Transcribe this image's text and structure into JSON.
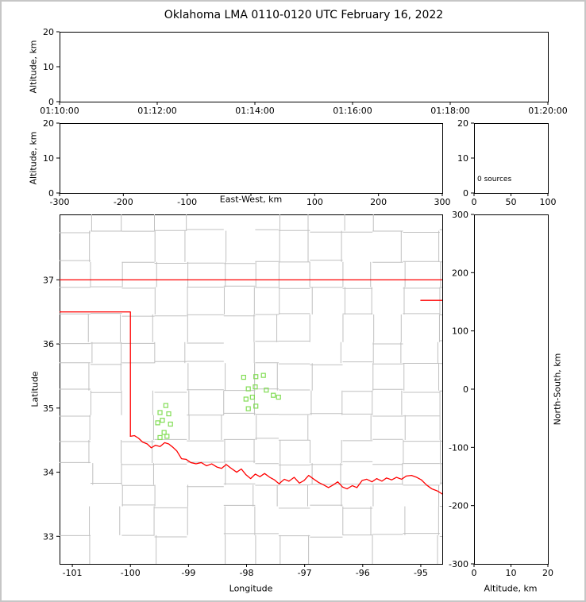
{
  "figure": {
    "title": "Oklahoma LMA 0110-0120 UTC February 16, 2022"
  },
  "colors": {
    "background": "#ffffff",
    "outer_frame": "#c6c6c6",
    "axis": "#000000",
    "county_lines": "#c0c0c0",
    "state_border": "#ff0000",
    "source_marker": "#82dd55"
  },
  "chart_data": [
    {
      "id": "altitude-vs-time",
      "type": "scatter",
      "xlabel": "",
      "ylabel": "Altitude, km",
      "xlim": [
        "01:10:00",
        "01:20:00"
      ],
      "xticks": [
        "01:10:00",
        "01:12:00",
        "01:14:00",
        "01:16:00",
        "01:18:00",
        "01:20:00"
      ],
      "ylim": [
        0,
        20
      ],
      "yticks": [
        0,
        10,
        20
      ],
      "points": []
    },
    {
      "id": "altitude-vs-east-west",
      "type": "scatter",
      "xlabel": "East-West, km",
      "ylabel": "Altitude, km",
      "xlim": [
        -300,
        300
      ],
      "xticks": [
        -300,
        -200,
        -100,
        0,
        100,
        200,
        300
      ],
      "xtick_labels": [
        "-300",
        "-200",
        "-100",
        "",
        "100",
        "200",
        "300"
      ],
      "ylim": [
        0,
        20
      ],
      "yticks": [
        0,
        10,
        20
      ],
      "points": []
    },
    {
      "id": "source-count-histogram",
      "type": "scatter",
      "xlabel": "",
      "ylabel": "",
      "xlim": [
        0,
        100
      ],
      "xticks": [
        0,
        50,
        100
      ],
      "ylim": [
        0,
        20
      ],
      "yticks": [
        0,
        10,
        20
      ],
      "annotation": "0 sources",
      "points": []
    },
    {
      "id": "plan-view-map",
      "type": "scatter",
      "xlabel": "Longitude",
      "ylabel": "Latitude",
      "xlim": [
        -101.22,
        -94.63
      ],
      "xticks": [
        -101,
        -100,
        -99,
        -98,
        -97,
        -96,
        -95
      ],
      "ylim": [
        32.57,
        38.02
      ],
      "yticks": [
        33,
        34,
        35,
        36,
        37
      ],
      "state_borders": [
        [
          [
            -101.22,
            37.0
          ],
          [
            -94.63,
            37.0
          ]
        ],
        [
          [
            -101.22,
            36.5
          ],
          [
            -100.0,
            36.5
          ],
          [
            -100.0,
            34.56
          ]
        ],
        [
          [
            -95.0,
            36.68
          ],
          [
            -94.63,
            36.68
          ]
        ],
        [
          [
            -100.0,
            34.56
          ],
          [
            -99.93,
            34.57
          ],
          [
            -99.86,
            34.53
          ],
          [
            -99.79,
            34.47
          ],
          [
            -99.71,
            34.44
          ],
          [
            -99.64,
            34.38
          ],
          [
            -99.57,
            34.42
          ],
          [
            -99.49,
            34.4
          ],
          [
            -99.41,
            34.46
          ],
          [
            -99.34,
            34.44
          ],
          [
            -99.27,
            34.39
          ],
          [
            -99.2,
            34.33
          ],
          [
            -99.12,
            34.21
          ],
          [
            -99.04,
            34.2
          ],
          [
            -98.96,
            34.15
          ],
          [
            -98.87,
            34.13
          ],
          [
            -98.78,
            34.15
          ],
          [
            -98.69,
            34.1
          ],
          [
            -98.6,
            34.13
          ],
          [
            -98.51,
            34.08
          ],
          [
            -98.43,
            34.06
          ],
          [
            -98.35,
            34.12
          ],
          [
            -98.28,
            34.07
          ],
          [
            -98.17,
            34.0
          ],
          [
            -98.09,
            34.05
          ],
          [
            -98.01,
            33.96
          ],
          [
            -97.93,
            33.9
          ],
          [
            -97.85,
            33.97
          ],
          [
            -97.77,
            33.93
          ],
          [
            -97.69,
            33.98
          ],
          [
            -97.6,
            33.92
          ],
          [
            -97.52,
            33.88
          ],
          [
            -97.44,
            33.82
          ],
          [
            -97.35,
            33.89
          ],
          [
            -97.27,
            33.86
          ],
          [
            -97.18,
            33.92
          ],
          [
            -97.09,
            33.83
          ],
          [
            -97.01,
            33.87
          ],
          [
            -96.93,
            33.95
          ],
          [
            -96.84,
            33.89
          ],
          [
            -96.76,
            33.84
          ],
          [
            -96.67,
            33.8
          ],
          [
            -96.59,
            33.76
          ],
          [
            -96.51,
            33.8
          ],
          [
            -96.43,
            33.85
          ],
          [
            -96.35,
            33.77
          ],
          [
            -96.27,
            33.74
          ],
          [
            -96.18,
            33.79
          ],
          [
            -96.1,
            33.76
          ],
          [
            -96.01,
            33.87
          ],
          [
            -95.93,
            33.89
          ],
          [
            -95.84,
            33.85
          ],
          [
            -95.76,
            33.9
          ],
          [
            -95.67,
            33.86
          ],
          [
            -95.59,
            33.91
          ],
          [
            -95.5,
            33.88
          ],
          [
            -95.42,
            33.92
          ],
          [
            -95.33,
            33.89
          ],
          [
            -95.25,
            33.94
          ],
          [
            -95.16,
            33.95
          ],
          [
            -95.07,
            33.92
          ],
          [
            -94.99,
            33.88
          ],
          [
            -94.9,
            33.8
          ],
          [
            -94.81,
            33.74
          ],
          [
            -94.72,
            33.71
          ],
          [
            -94.63,
            33.66
          ]
        ]
      ],
      "stations": [
        [
          -98.05,
          35.48
        ],
        [
          -97.84,
          35.49
        ],
        [
          -97.71,
          35.51
        ],
        [
          -97.97,
          35.3
        ],
        [
          -97.85,
          35.33
        ],
        [
          -97.66,
          35.28
        ],
        [
          -98.01,
          35.14
        ],
        [
          -97.9,
          35.17
        ],
        [
          -97.54,
          35.2
        ],
        [
          -97.45,
          35.17
        ],
        [
          -97.84,
          35.03
        ],
        [
          -97.97,
          34.99
        ],
        [
          -99.39,
          35.04
        ],
        [
          -99.49,
          34.93
        ],
        [
          -99.34,
          34.91
        ],
        [
          -99.45,
          34.81
        ],
        [
          -99.53,
          34.77
        ],
        [
          -99.31,
          34.75
        ],
        [
          -99.42,
          34.62
        ],
        [
          -99.49,
          34.54
        ],
        [
          -99.37,
          34.56
        ]
      ]
    },
    {
      "id": "north-south-vs-altitude",
      "type": "scatter",
      "xlabel": "Altitude, km",
      "ylabel": "North-South, km",
      "xlim": [
        0,
        20
      ],
      "xticks": [
        0,
        10,
        20
      ],
      "ylim": [
        -300,
        300
      ],
      "yticks": [
        -300,
        -200,
        -100,
        0,
        100,
        200,
        300
      ],
      "points": []
    }
  ]
}
